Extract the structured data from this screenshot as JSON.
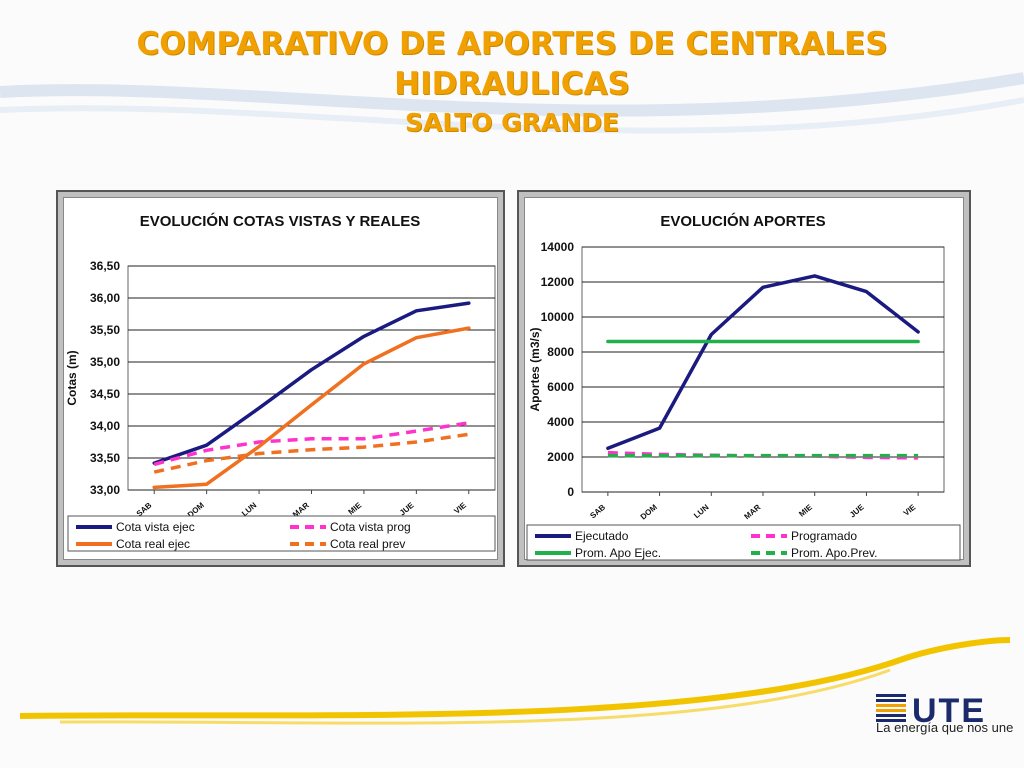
{
  "slide": {
    "title_line1": "COMPARATIVO DE APORTES DE CENTRALES",
    "title_line2": "HIDRAULICAS",
    "subtitle": "SALTO GRANDE",
    "logo_text": "UTE",
    "tagline": "La energía que nos une",
    "colors": {
      "title": "#f0a000",
      "accent_line": "#f2c400"
    }
  },
  "chart_data": [
    {
      "type": "line",
      "title": "EVOLUCIÓN  COTAS VISTAS Y REALES",
      "xlabel": "",
      "ylabel": "Cotas (m)",
      "categories": [
        "SAB",
        "DOM",
        "LUN",
        "MAR",
        "MIE",
        "JUE",
        "VIE"
      ],
      "ylim": [
        33.0,
        36.5
      ],
      "yticks": [
        33.0,
        33.5,
        34.0,
        34.5,
        35.0,
        35.5,
        36.0,
        36.5
      ],
      "yticklabels": [
        "33,00",
        "33,50",
        "34,00",
        "34,50",
        "35,00",
        "35,50",
        "36,00",
        "36,50"
      ],
      "grid": true,
      "legend": "bottom",
      "series": [
        {
          "name": "Cota vista ejec",
          "color": "#1a1a80",
          "dash": false,
          "values": [
            33.42,
            33.7,
            34.28,
            34.88,
            35.4,
            35.8,
            35.92
          ]
        },
        {
          "name": "Cota vista prog",
          "color": "#ff33cc",
          "dash": true,
          "values": [
            33.4,
            33.62,
            33.75,
            33.8,
            33.8,
            33.92,
            34.05
          ]
        },
        {
          "name": "Cota real ejec",
          "color": "#f07020",
          "dash": false,
          "values": [
            33.04,
            33.09,
            33.68,
            34.33,
            34.97,
            35.38,
            35.53
          ]
        },
        {
          "name": "Cota real prev",
          "color": "#f07020",
          "dash": true,
          "values": [
            33.28,
            33.46,
            33.57,
            33.63,
            33.67,
            33.75,
            33.87
          ]
        }
      ]
    },
    {
      "type": "line",
      "title": "EVOLUCIÓN  APORTES",
      "xlabel": "",
      "ylabel": "Aportes (m3/s)",
      "categories": [
        "SAB",
        "DOM",
        "LUN",
        "MAR",
        "MIE",
        "JUE",
        "VIE"
      ],
      "ylim": [
        0,
        14000
      ],
      "yticks": [
        0,
        2000,
        4000,
        6000,
        8000,
        10000,
        12000,
        14000
      ],
      "yticklabels": [
        "0",
        "2000",
        "4000",
        "6000",
        "8000",
        "10000",
        "12000",
        "14000"
      ],
      "grid": true,
      "legend": "bottom",
      "series": [
        {
          "name": "Ejecutado",
          "color": "#1a1a80",
          "dash": false,
          "values": [
            2500,
            3650,
            9000,
            11700,
            12350,
            11450,
            9150
          ]
        },
        {
          "name": "Programado",
          "color": "#ff33cc",
          "dash": true,
          "values": [
            2250,
            2150,
            2100,
            2050,
            2050,
            1980,
            1950
          ]
        },
        {
          "name": "Prom. Apo Ejec.",
          "color": "#22b04a",
          "dash": false,
          "values": [
            8600,
            8600,
            8600,
            8600,
            8600,
            8600,
            8600
          ]
        },
        {
          "name": "Prom. Apo.Prev.",
          "color": "#22b04a",
          "dash": true,
          "values": [
            2080,
            2080,
            2080,
            2080,
            2080,
            2080,
            2080
          ]
        }
      ]
    }
  ]
}
